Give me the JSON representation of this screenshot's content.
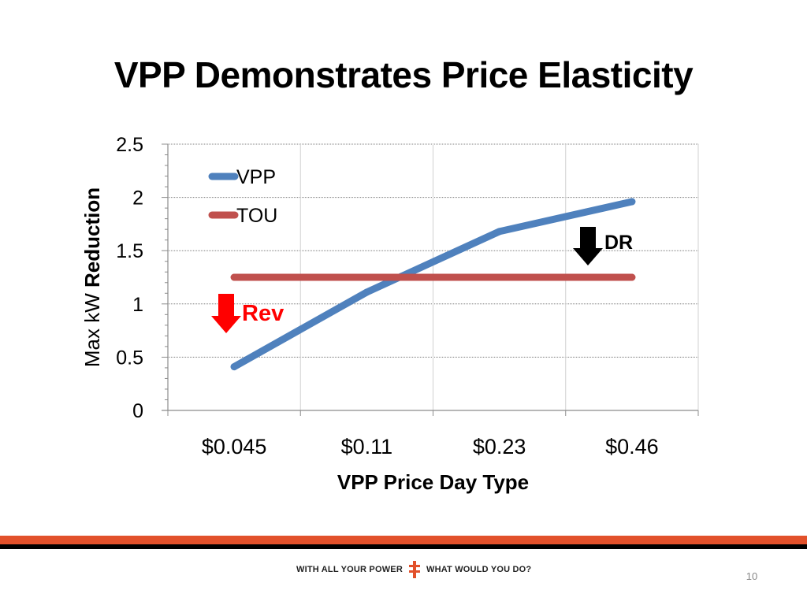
{
  "slide": {
    "title": "VPP Demonstrates Price Elasticity",
    "page_number": "10",
    "footer_left": "WITH ALL YOUR POWER",
    "footer_right": "WHAT WOULD YOU DO?",
    "colors": {
      "accent": "#e2512b",
      "footer_black": "#000000"
    }
  },
  "chart_data": {
    "type": "line",
    "categories": [
      "$0.045",
      "$0.11",
      "$0.23",
      "$0.46"
    ],
    "series": [
      {
        "name": "VPP",
        "values": [
          0.41,
          1.11,
          1.68,
          1.96
        ],
        "color": "#4f81bd"
      },
      {
        "name": "TOU",
        "values": [
          1.25,
          1.25,
          1.25,
          1.25
        ],
        "color": "#c0504d"
      }
    ],
    "xlabel": "VPP Price Day Type",
    "ylabel_plain": "Max kW ",
    "ylabel_bold": "Reduction",
    "ylim": [
      0,
      2.5
    ],
    "yticks": [
      "0",
      "0.5",
      "1",
      "1.5",
      "2",
      "2.5"
    ],
    "grid": true,
    "legend_position": "top-left",
    "annotations": [
      {
        "label": "Rev",
        "color": "#ff0000",
        "arrow": "down",
        "arrow_color": "#ff0000"
      },
      {
        "label": "DR",
        "color": "#000000",
        "arrow": "down",
        "arrow_color": "#000000"
      }
    ]
  }
}
